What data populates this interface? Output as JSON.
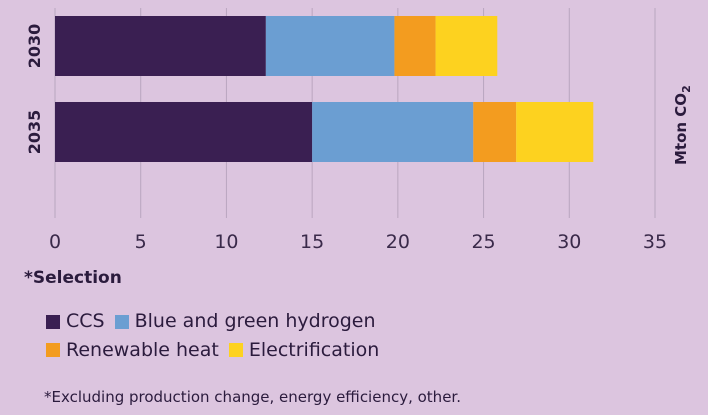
{
  "chart_data": {
    "type": "bar",
    "orientation": "horizontal",
    "stacked": true,
    "categories": [
      "2030",
      "2035"
    ],
    "series": [
      {
        "name": "CCS",
        "color": "#3a1f52",
        "values": [
          12.3,
          15.0
        ]
      },
      {
        "name": "Blue and green hydrogen",
        "color": "#6b9ed2",
        "values": [
          7.5,
          9.4
        ]
      },
      {
        "name": "Renewable heat",
        "color": "#f39c1f",
        "values": [
          2.4,
          2.5
        ]
      },
      {
        "name": "Electrification",
        "color": "#fdd21f",
        "values": [
          3.6,
          4.5
        ]
      }
    ],
    "xlim": [
      0,
      35
    ],
    "xticks": [
      "0",
      "5",
      "10",
      "15",
      "20",
      "25",
      "30",
      "35"
    ],
    "unit_label": "Mton CO",
    "unit_subscript": "2",
    "grid": true
  },
  "selection_heading": "*Selection",
  "legend": [
    {
      "label": "CCS",
      "color": "#3a1f52"
    },
    {
      "label": "Blue and green hydrogen",
      "color": "#6b9ed2"
    },
    {
      "label": "Renewable heat",
      "color": "#f39c1f"
    },
    {
      "label": "Electrification",
      "color": "#fdd21f"
    }
  ],
  "footnote": "*Excluding production change, energy efficiency, other."
}
